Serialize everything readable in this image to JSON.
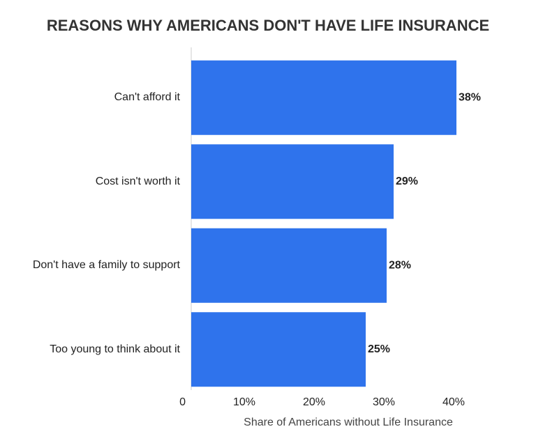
{
  "chart_data": {
    "type": "bar",
    "orientation": "horizontal",
    "title": "REASONS WHY AMERICANS DON'T HAVE LIFE INSURANCE",
    "x_label": "Share of Americans without Life Insurance",
    "categories": [
      "Can't afford it",
      "Cost isn't worth it",
      "Don't have a family to support",
      "Too young to think about it"
    ],
    "values": [
      38,
      29,
      28,
      25
    ],
    "value_labels": [
      "38%",
      "29%",
      "28%",
      "25%"
    ],
    "color": "#2f73ec",
    "xlim": [
      0,
      40
    ],
    "xticks": [
      0,
      {
        "value": 10,
        "label": "10%"
      },
      {
        "value": 20,
        "label": "20%"
      },
      {
        "value": 30,
        "label": "30%"
      },
      {
        "value": 40,
        "label": "40%"
      }
    ],
    "grid": false
  }
}
